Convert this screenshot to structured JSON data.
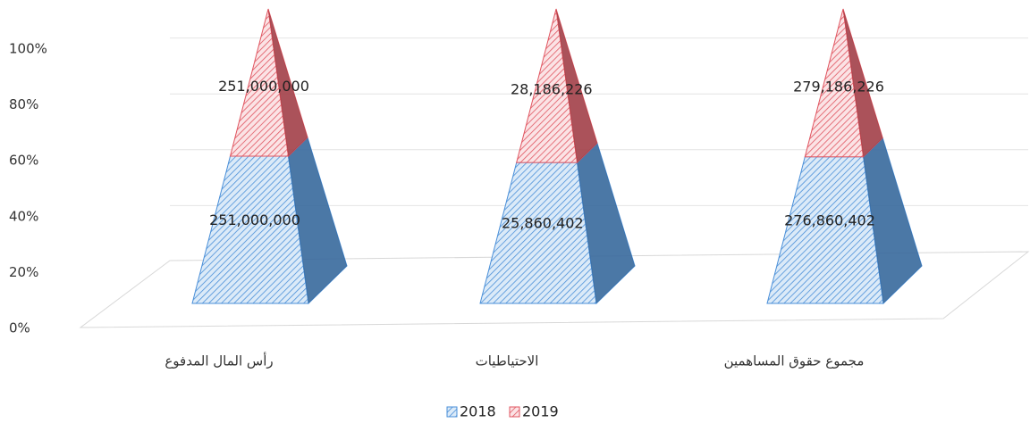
{
  "chart_data": {
    "type": "stacked_percent_pyramid",
    "categories": [
      "رأس المال المدفوع",
      "الاحتياطيات",
      "مجموع حقوق المساهمين"
    ],
    "series": [
      {
        "name": "2018",
        "color": "#4a8fd8",
        "values": [
          251000000,
          25860402,
          276860402
        ],
        "value_labels": [
          "251,000,000",
          "25,860,402",
          "276,860,402"
        ]
      },
      {
        "name": "2019",
        "color": "#e05560",
        "values": [
          251000000,
          28186226,
          279186226
        ],
        "value_labels": [
          "251,000,000",
          "28,186,226",
          "279,186,226"
        ]
      }
    ],
    "ylim": [
      0,
      100
    ],
    "yticks": [
      {
        "value": 0,
        "label": "0%"
      },
      {
        "value": 20,
        "label": "20%"
      },
      {
        "value": 40,
        "label": "40%"
      },
      {
        "value": 60,
        "label": "60%"
      },
      {
        "value": 80,
        "label": "80%"
      },
      {
        "value": 100,
        "label": "100%"
      }
    ],
    "grid": true,
    "legend": "bottom"
  }
}
